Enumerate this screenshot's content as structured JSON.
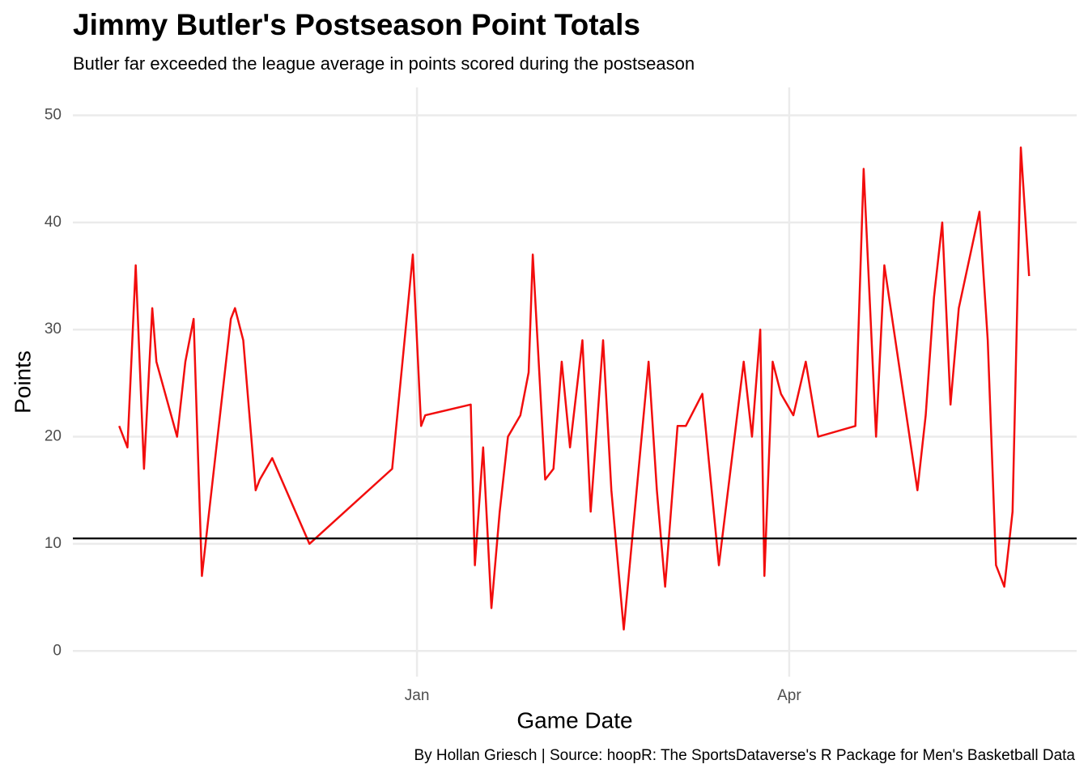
{
  "chart_data": {
    "type": "line",
    "title": "Jimmy Butler's Postseason Point Totals",
    "subtitle": "Butler far exceeded the league average in points scored during the postseason",
    "x_label": "Game Date",
    "y_label": "Points",
    "caption": "By Hollan Griesch | Source: hoopR: The SportsDataverse's R Package for Men's Basketball Data",
    "x": [
      -72,
      -70,
      -68,
      -66,
      -64,
      -63,
      -58,
      -56,
      -54,
      -52,
      -45,
      -44,
      -42,
      -39,
      -38,
      -35,
      -26,
      -6,
      -1,
      1,
      2,
      13,
      14,
      16,
      18,
      20,
      22,
      25,
      27,
      28,
      31,
      33,
      35,
      37,
      40,
      42,
      45,
      47,
      50,
      56,
      58,
      60,
      63,
      65,
      69,
      73,
      79,
      81,
      83,
      84,
      86,
      88,
      91,
      94,
      97,
      106,
      108,
      111,
      113,
      121,
      123,
      125,
      127,
      129,
      131,
      136,
      138,
      140,
      142,
      144,
      146,
      148
    ],
    "series": [
      {
        "name": "Points",
        "color": "#f20d0d",
        "values": [
          21,
          19,
          36,
          17,
          32,
          27,
          20,
          27,
          31,
          7,
          31,
          32,
          29,
          15,
          16,
          18,
          10,
          17,
          37,
          21,
          22,
          23,
          8,
          19,
          4,
          13,
          20,
          22,
          26,
          37,
          16,
          17,
          27,
          19,
          29,
          13,
          29,
          15,
          2,
          27,
          15,
          6,
          21,
          21,
          24,
          8,
          27,
          20,
          30,
          7,
          27,
          24,
          22,
          27,
          20,
          21,
          45,
          20,
          36,
          15,
          22,
          33,
          40,
          23,
          32,
          41,
          29,
          8,
          6,
          13,
          47,
          35
        ]
      }
    ],
    "hline": 10.5,
    "hline_color": "#000000",
    "xlim": [
      -83.2,
      159.5
    ],
    "xticks": [
      {
        "value": 0,
        "label": "Jan"
      },
      {
        "value": 90,
        "label": "Apr"
      }
    ],
    "ylim": [
      -2.4,
      51.7
    ],
    "yticks": [
      0,
      10,
      20,
      30,
      40,
      50
    ],
    "grid": true
  }
}
